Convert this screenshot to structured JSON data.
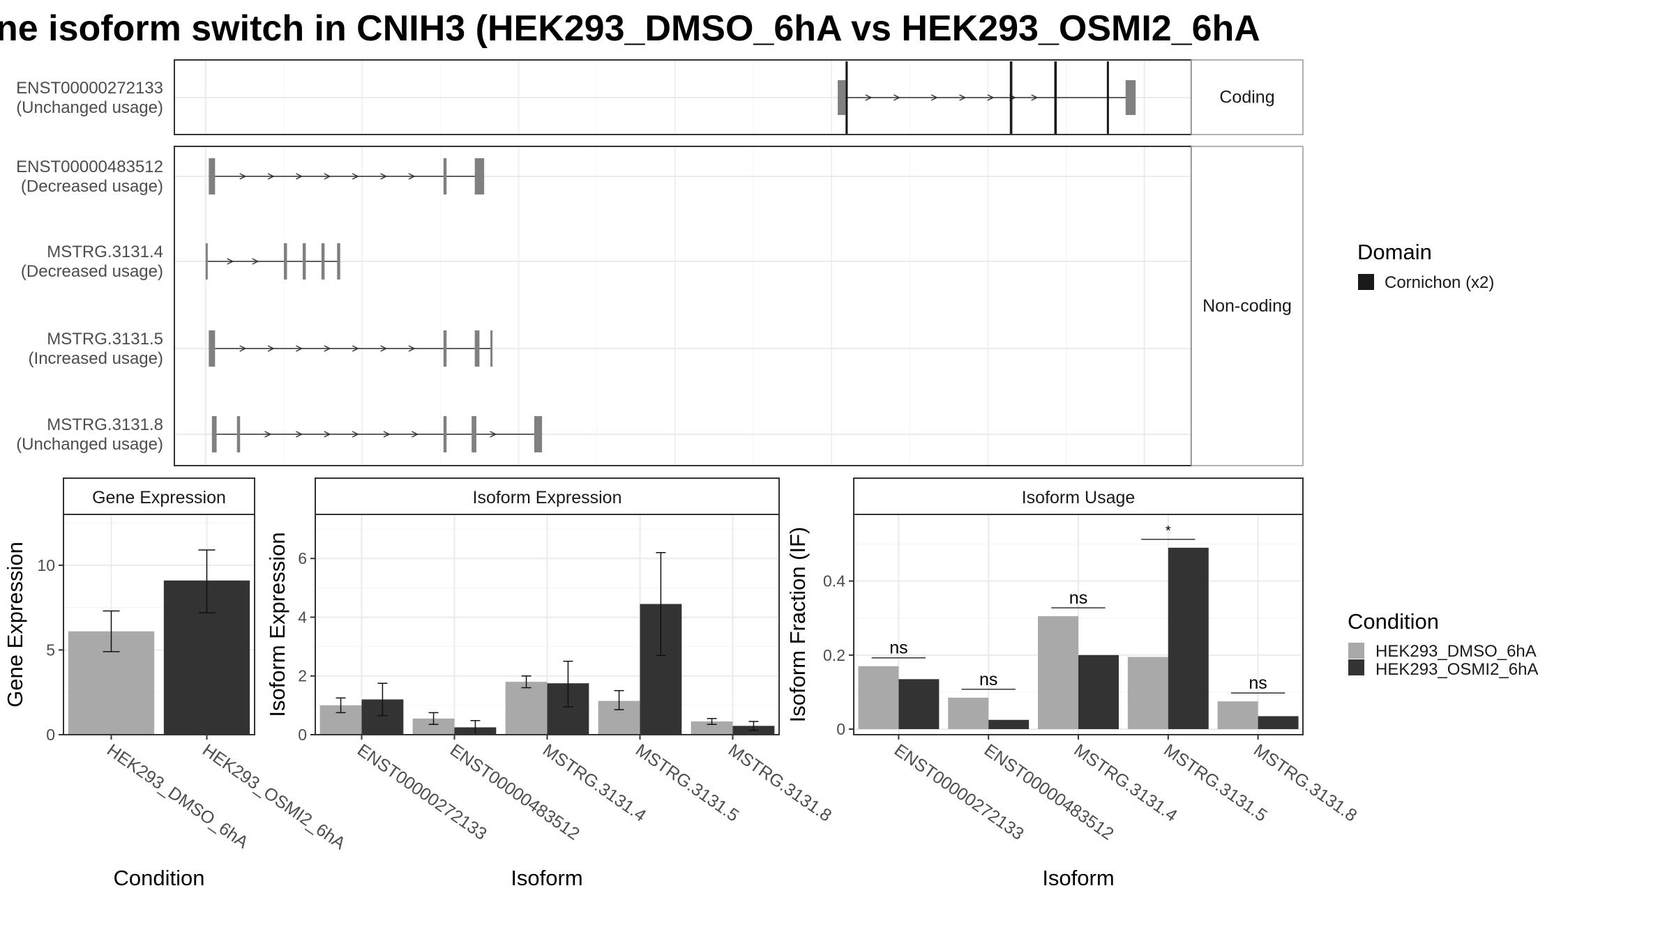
{
  "title": "ne isoform switch in CNIH3 (HEK293_DMSO_6hA vs HEK293_OSMI2_6hA",
  "colors": {
    "dmso": "#a9a9a9",
    "osmi": "#333333",
    "exon_noncoding": "#808080",
    "domain": "#1a1a1a",
    "grid": "#ebebeb",
    "border": "#333333",
    "strip_bg": "#ffffff"
  },
  "chart_data": [
    {
      "type": "gene_structure",
      "facets": [
        {
          "label": "Coding",
          "rows": 1
        },
        {
          "label": "Non-coding",
          "rows": 4
        }
      ],
      "transcripts": [
        {
          "id": "ENST00000272133",
          "usage": "(Unchanged usage)",
          "facet": "Coding",
          "intron_span": [
            20.35,
            27.8
          ],
          "exons": [
            [
              20.2,
              20.45
            ],
            [
              20.45,
              20.52
            ],
            [
              25.7,
              25.78
            ],
            [
              27.12,
              27.2
            ],
            [
              28.8,
              28.85
            ],
            [
              29.4,
              29.72
            ]
          ],
          "domain_exons": [
            [
              20.45,
              20.52
            ],
            [
              25.7,
              25.78
            ],
            [
              27.12,
              27.2
            ],
            [
              28.8,
              28.85
            ]
          ],
          "cds_exons": [
            [
              21.3,
              21.35
            ],
            [
              22.4,
              22.45
            ],
            [
              27.8,
              28.1
            ]
          ],
          "arrows": [
            21.2,
            22.1,
            23.3,
            24.2,
            25.1,
            25.8,
            26.5
          ]
        },
        {
          "id": "ENST00000483512",
          "usage": "(Decreased usage)",
          "facet": "Non-coding",
          "exons": [
            [
              0.1,
              0.3
            ],
            [
              7.6,
              7.7
            ],
            [
              8.6,
              8.9
            ]
          ],
          "arrows": [
            1.2,
            2.1,
            3.0,
            3.9,
            4.8,
            5.7,
            6.6
          ]
        },
        {
          "id": "MSTRG.3131.4",
          "usage": "(Decreased usage)",
          "facet": "Non-coding",
          "exons": [
            [
              0.0,
              0.02
            ],
            [
              2.5,
              2.6
            ],
            [
              3.1,
              3.2
            ],
            [
              3.7,
              3.8
            ],
            [
              4.2,
              4.3
            ]
          ],
          "arrows": [
            0.8,
            1.6
          ]
        },
        {
          "id": "MSTRG.3131.5",
          "usage": "(Increased usage)",
          "facet": "Non-coding",
          "exons": [
            [
              0.1,
              0.3
            ],
            [
              7.6,
              7.7
            ],
            [
              8.6,
              8.75
            ],
            [
              9.1,
              9.15
            ]
          ],
          "arrows": [
            1.2,
            2.1,
            3.0,
            3.9,
            4.8,
            5.7,
            6.6
          ]
        },
        {
          "id": "MSTRG.3131.8",
          "usage": "(Unchanged usage)",
          "facet": "Non-coding",
          "exons": [
            [
              0.2,
              0.35
            ],
            [
              1.0,
              1.1
            ],
            [
              7.6,
              7.7
            ],
            [
              8.5,
              8.65
            ],
            [
              10.5,
              10.75
            ]
          ],
          "arrows": [
            2.0,
            3.0,
            3.9,
            4.8,
            5.8,
            6.7,
            9.2
          ]
        }
      ],
      "legend": {
        "title": "Domain",
        "entries": [
          "Cornichon (x2)"
        ]
      }
    },
    {
      "type": "bar",
      "title": "Gene Expression",
      "xlabel": "Condition",
      "ylabel": "Gene Expression",
      "ylim": [
        0,
        13
      ],
      "yticks": [
        0,
        5,
        10
      ],
      "categories": [
        "HEK293_DMSO_6hA",
        "HEK293_OSMI2_6hA"
      ],
      "values": [
        6.1,
        9.1
      ],
      "errors": [
        [
          4.9,
          7.3
        ],
        [
          7.2,
          10.9
        ]
      ]
    },
    {
      "type": "bar",
      "title": "Isoform Expression",
      "xlabel": "Isoform",
      "ylabel": "Isoform Expression",
      "ylim": [
        0,
        7.5
      ],
      "yticks": [
        0,
        2,
        4,
        6
      ],
      "categories": [
        "ENST00000272133",
        "ENST00000483512",
        "MSTRG.3131.4",
        "MSTRG.3131.5",
        "MSTRG.3131.8"
      ],
      "series": [
        {
          "name": "HEK293_DMSO_6hA",
          "values": [
            1.0,
            0.55,
            1.8,
            1.15,
            0.45
          ],
          "errors": [
            [
              0.75,
              1.25
            ],
            [
              0.35,
              0.75
            ],
            [
              1.6,
              2.0
            ],
            [
              0.85,
              1.5
            ],
            [
              0.35,
              0.55
            ]
          ]
        },
        {
          "name": "HEK293_OSMI2_6hA",
          "values": [
            1.2,
            0.25,
            1.75,
            4.45,
            0.3
          ],
          "errors": [
            [
              0.65,
              1.75
            ],
            [
              0.0,
              0.48
            ],
            [
              0.95,
              2.5
            ],
            [
              2.7,
              6.2
            ],
            [
              0.15,
              0.45
            ]
          ]
        }
      ]
    },
    {
      "type": "bar",
      "title": "Isoform Usage",
      "xlabel": "Isoform",
      "ylabel": "Isoform Fraction (IF)",
      "ylim": [
        -0.015,
        0.58
      ],
      "yticks": [
        0.0,
        0.2,
        0.4
      ],
      "categories": [
        "ENST00000272133",
        "ENST00000483512",
        "MSTRG.3131.4",
        "MSTRG.3131.5",
        "MSTRG.3131.8"
      ],
      "series": [
        {
          "name": "HEK293_DMSO_6hA",
          "values": [
            0.17,
            0.085,
            0.305,
            0.195,
            0.075
          ]
        },
        {
          "name": "HEK293_OSMI2_6hA",
          "values": [
            0.135,
            0.025,
            0.2,
            0.49,
            0.035
          ]
        }
      ],
      "significance": [
        "ns",
        "ns",
        "ns",
        "*",
        "ns"
      ]
    }
  ],
  "legend": {
    "title": "Condition",
    "entries": [
      "HEK293_DMSO_6hA",
      "HEK293_OSMI2_6hA"
    ]
  }
}
